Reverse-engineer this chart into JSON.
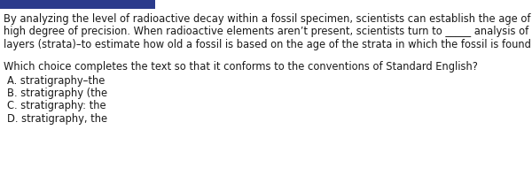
{
  "bg_color": "#ffffff",
  "header_color": "#2b3b8c",
  "passage_lines": [
    "By analyzing the level of radioactive decay within a fossil specimen, scientists can establish the age of that fossil with a",
    "high degree of precision. When radioactive elements aren’t present, scientists turn to _____ analysis of Earth’s sediment",
    "layers (strata)–to estimate how old a fossil is based on the age of the strata in which the fossil is found."
  ],
  "question": "Which choice completes the text so that it conforms to the conventions of Standard English?",
  "choices": [
    "A. stratigraphy–the",
    "B. stratigraphy (the",
    "C. stratigraphy: the",
    "D. stratigraphy, the"
  ],
  "passage_fontsize": 8.3,
  "question_fontsize": 8.3,
  "choice_fontsize": 8.3,
  "text_color": "#1a1a1a",
  "figsize": [
    6.0,
    2.16
  ],
  "dpi": 100
}
